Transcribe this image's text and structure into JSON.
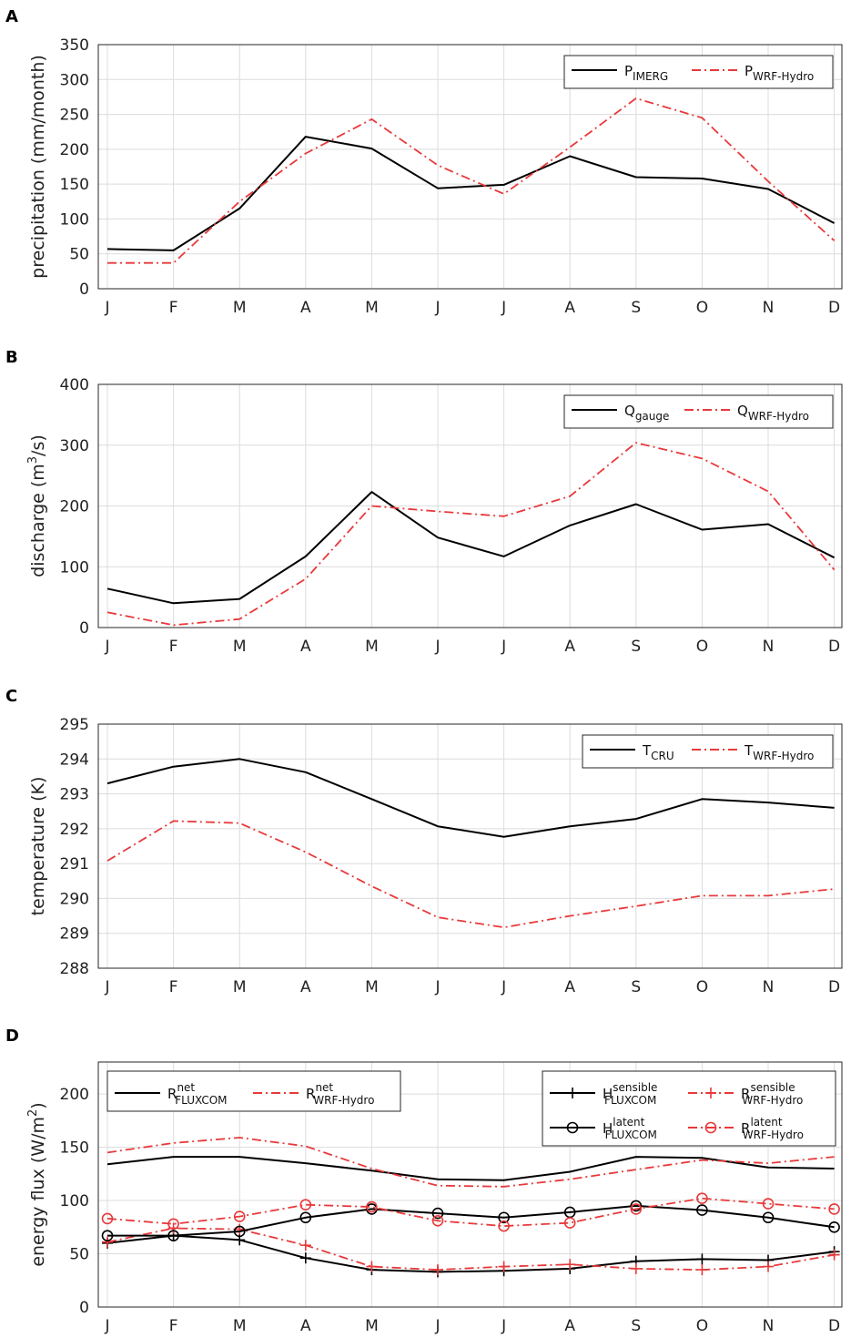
{
  "months": [
    "J",
    "F",
    "M",
    "A",
    "M",
    "J",
    "J",
    "A",
    "S",
    "O",
    "N",
    "D"
  ],
  "colors": {
    "obs": "#000000",
    "model": "#e8393b"
  },
  "chart_data": [
    {
      "panel": "A",
      "type": "line",
      "ylabel": "precipitation (mm/month)",
      "ylim": [
        0,
        350
      ],
      "yticks": [
        0,
        50,
        100,
        150,
        200,
        250,
        300,
        350
      ],
      "legend_position": "top-right",
      "series": [
        {
          "name": "P",
          "sub": "IMERG",
          "style": "solid",
          "values": [
            57,
            55,
            115,
            218,
            201,
            144,
            149,
            190,
            160,
            158,
            143,
            94
          ]
        },
        {
          "name": "P",
          "sub": "WRF-Hydro",
          "style": "dashdot",
          "values": [
            37,
            37,
            125,
            194,
            243,
            177,
            136,
            203,
            273,
            245,
            154,
            69
          ]
        }
      ]
    },
    {
      "panel": "B",
      "type": "line",
      "ylabel": "discharge (m",
      "ylabel_sup": "3",
      "ylabel_end": "/s)",
      "ylim": [
        0,
        400
      ],
      "yticks": [
        0,
        100,
        200,
        300,
        400
      ],
      "legend_position": "top-right",
      "series": [
        {
          "name": "Q",
          "sub": "gauge",
          "style": "solid",
          "values": [
            64,
            40,
            47,
            117,
            223,
            148,
            117,
            168,
            203,
            161,
            170,
            115
          ]
        },
        {
          "name": "Q",
          "sub": "WRF-Hydro",
          "style": "dashdot",
          "values": [
            25,
            4,
            14,
            80,
            200,
            191,
            183,
            216,
            304,
            278,
            224,
            95
          ]
        }
      ]
    },
    {
      "panel": "C",
      "type": "line",
      "ylabel": "temperature (K)",
      "ylim": [
        288,
        295
      ],
      "yticks": [
        288,
        289,
        290,
        291,
        292,
        293,
        294,
        295
      ],
      "legend_position": "top-right",
      "series": [
        {
          "name": "T",
          "sub": "CRU",
          "style": "solid",
          "values": [
            293.3,
            293.78,
            294.0,
            293.62,
            292.85,
            292.07,
            291.77,
            292.07,
            292.28,
            292.85,
            292.75,
            292.6
          ]
        },
        {
          "name": "T",
          "sub": "WRF-Hydro",
          "style": "dashdot",
          "values": [
            291.08,
            292.22,
            292.16,
            291.33,
            290.35,
            289.46,
            289.17,
            289.5,
            289.78,
            290.08,
            290.08,
            290.27
          ]
        }
      ]
    },
    {
      "panel": "D",
      "type": "line",
      "ylabel": "energy flux (W/m",
      "ylabel_sup": "2",
      "ylabel_end": ")",
      "ylim": [
        0,
        230
      ],
      "yticks": [
        0,
        50,
        100,
        150,
        200
      ],
      "legend_position": "top-left and top-right",
      "series": [
        {
          "name": "R",
          "sup": "net",
          "sub": "FLUXCOM",
          "style": "solid",
          "marker": "none",
          "values": [
            134,
            141,
            141,
            135,
            128,
            120,
            119,
            127,
            141,
            140,
            131,
            130
          ]
        },
        {
          "name": "R",
          "sup": "net",
          "sub": "WRF-Hydro",
          "style": "dashdot",
          "marker": "none",
          "values": [
            145,
            154,
            159,
            151,
            130,
            114,
            113,
            120,
            129,
            138,
            135,
            141
          ]
        },
        {
          "name": "H",
          "sup": "sensible",
          "sub": "FLUXCOM",
          "style": "solid",
          "marker": "plus",
          "values": [
            60,
            67,
            63,
            46,
            35,
            33,
            34,
            36,
            43,
            45,
            44,
            52
          ]
        },
        {
          "name": "R",
          "sup": "sensible",
          "sub": "WRF-Hydro",
          "style": "dashdot",
          "marker": "plus",
          "values": [
            61,
            74,
            73,
            58,
            38,
            35,
            38,
            40,
            36,
            35,
            38,
            49
          ]
        },
        {
          "name": "H",
          "sup": "latent",
          "sub": "FLUXCOM",
          "style": "solid",
          "marker": "circle",
          "values": [
            67,
            67,
            71,
            84,
            92,
            88,
            84,
            89,
            95,
            91,
            84,
            75
          ]
        },
        {
          "name": "R",
          "sup": "latent",
          "sub": "WRF-Hydro",
          "style": "dashdot",
          "marker": "circle",
          "values": [
            83,
            78,
            85,
            96,
            94,
            81,
            76,
            79,
            92,
            102,
            97,
            92
          ]
        }
      ]
    }
  ]
}
